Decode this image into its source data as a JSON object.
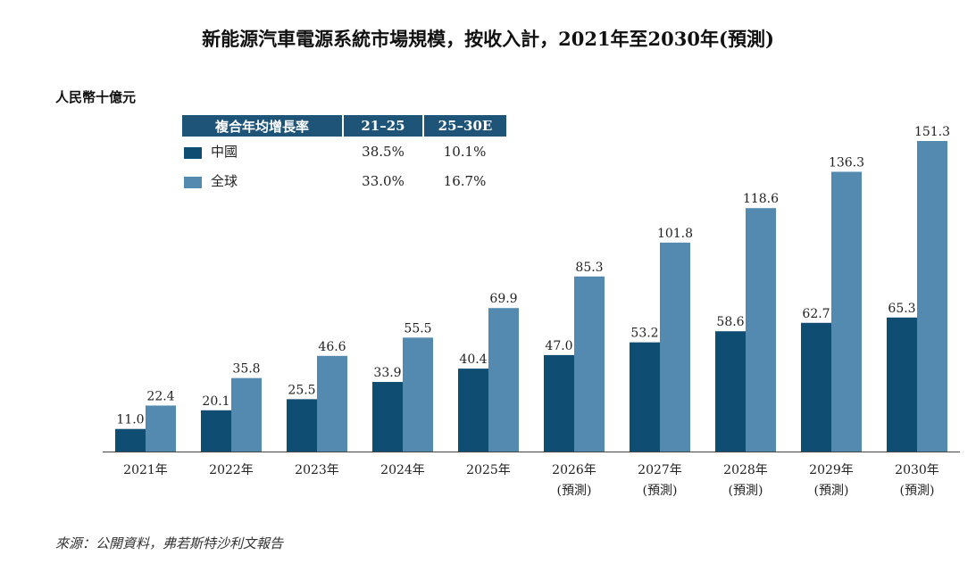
{
  "title": "新能源汽車電源系統市場規模，按收入計，2021年至2030年(預測)",
  "unit": "人民幣十億元",
  "source": "來源：公開資料，弗若斯特沙利文報告",
  "cagr_table": {
    "header": [
      "複合年均增長率",
      "21–25",
      "25–30E"
    ],
    "rows": [
      {
        "name": "中國",
        "c1": "38.5%",
        "c2": "10.1%"
      },
      {
        "name": "全球",
        "c1": "33.0%",
        "c2": "16.7%"
      }
    ]
  },
  "chart_data": {
    "type": "bar",
    "categories": [
      "2021年",
      "2022年",
      "2023年",
      "2024年",
      "2025年",
      "2026年",
      "2027年",
      "2028年",
      "2029年",
      "2030年"
    ],
    "category_sublabels": [
      "",
      "",
      "",
      "",
      "",
      "(預測)",
      "(預測)",
      "(預測)",
      "(預測)",
      "(預測)"
    ],
    "series": [
      {
        "name": "中國",
        "color": "#0f4d72",
        "values": [
          11.0,
          20.1,
          25.5,
          33.9,
          40.4,
          47.0,
          53.2,
          58.6,
          62.7,
          65.3
        ]
      },
      {
        "name": "全球",
        "color": "#5489b0",
        "values": [
          22.4,
          35.8,
          46.6,
          55.5,
          69.9,
          85.3,
          101.8,
          118.6,
          136.3,
          151.3
        ]
      }
    ],
    "ylim": [
      0,
      151.3
    ],
    "grid": false,
    "legend": "top-left table"
  }
}
